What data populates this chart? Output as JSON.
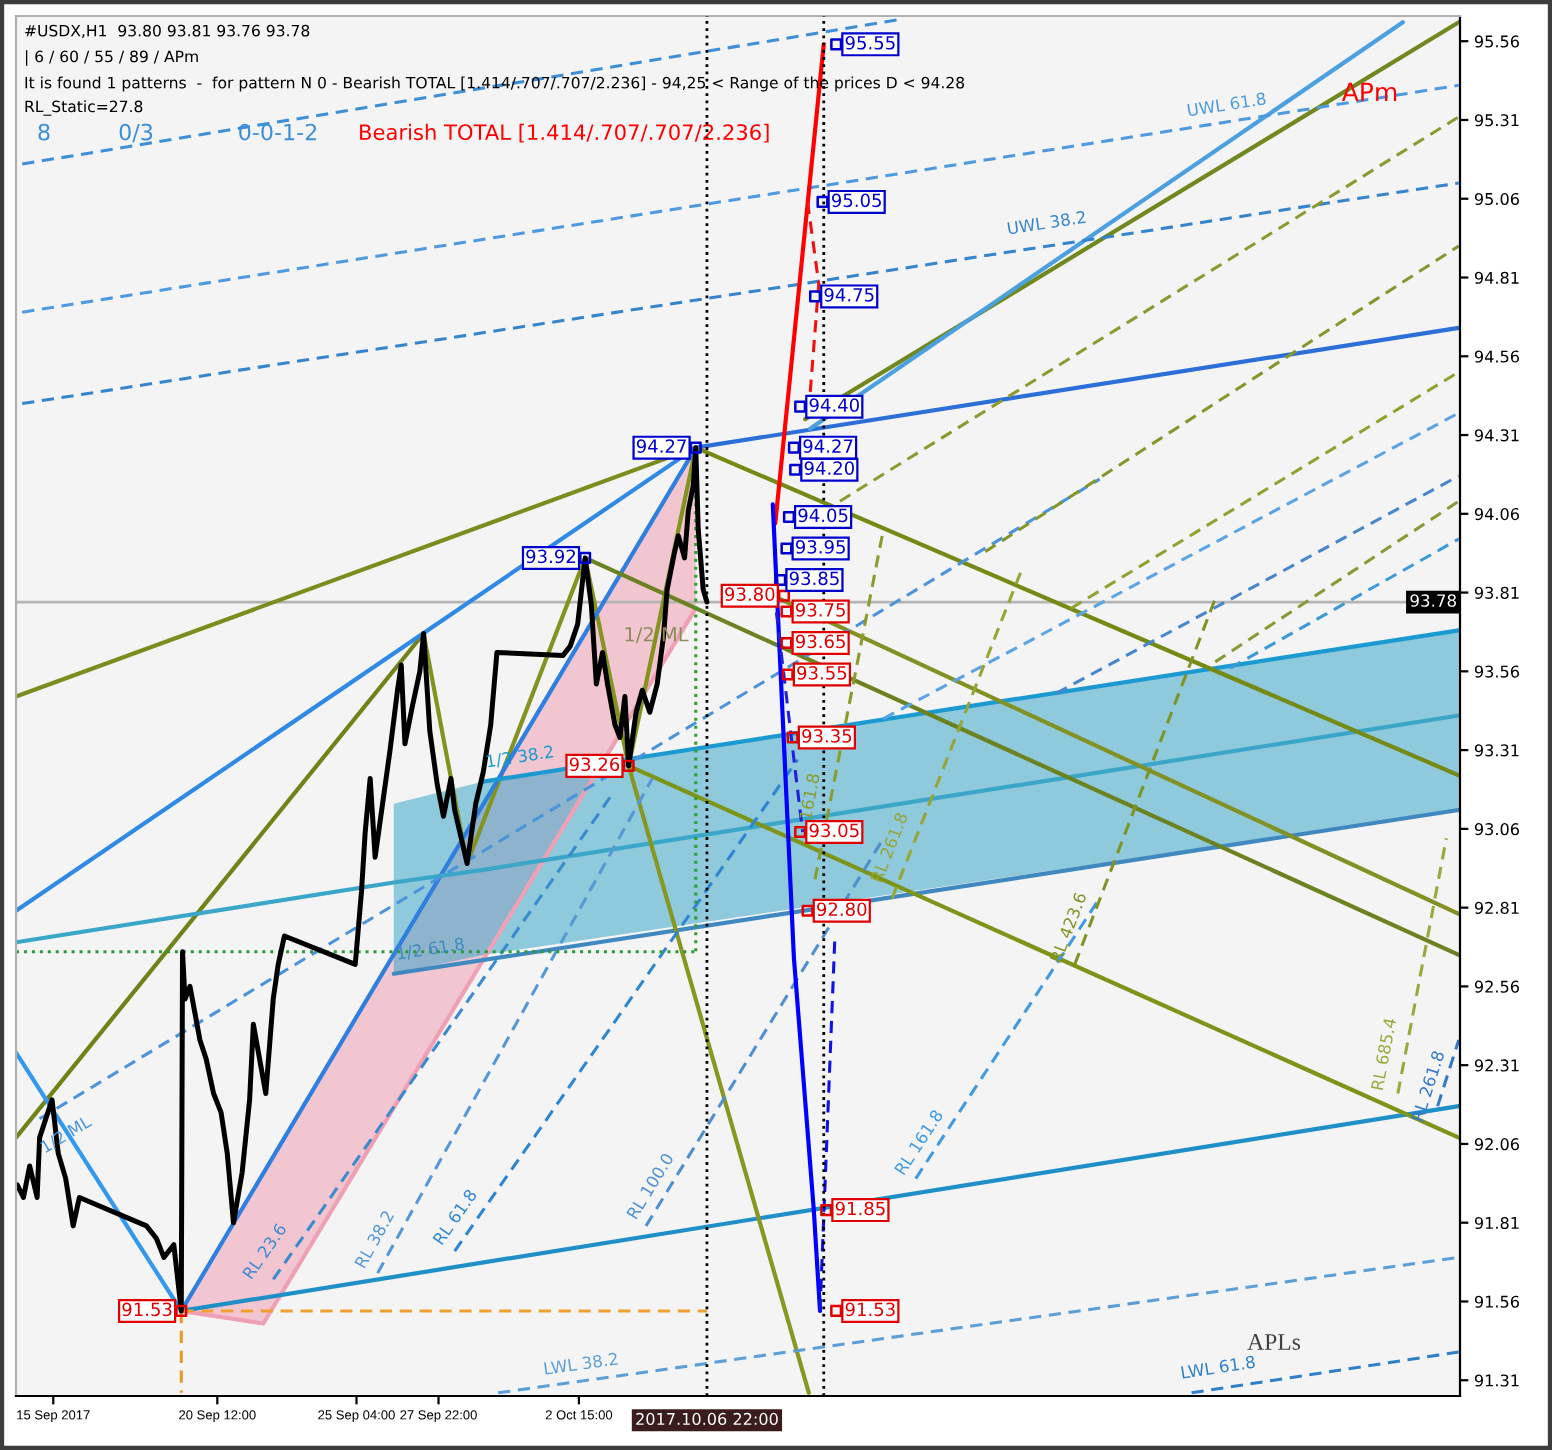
{
  "chart_data": {
    "type": "line",
    "title": "#USDX,H1  93.80 93.81 93.76 93.78",
    "subtitle": "| 6 / 60 / 55 / 89 / APm",
    "annotations": [
      "It is found 1 patterns  -  for pattern N 0 - Bearish TOTAL [1.414/.707/.707/2.236] - 94,25 < Range of the prices D < 94.28",
      "RL_Static=27.8",
      "8",
      "0/3",
      "0-0-1-2",
      "Bearish TOTAL [1.414/.707/.707/2.236]",
      "APm",
      "APLs",
      "1/2 ML"
    ],
    "xlim": [
      "2017-09-13T18:00",
      "2017-11-01T04:00"
    ],
    "ylim": [
      91.26,
      95.64
    ],
    "xticks": [
      {
        "value": "2017-09-15",
        "label": "15 Sep 2017"
      },
      {
        "value": "2017-09-20T12:00",
        "label": "20 Sep 12:00"
      },
      {
        "value": "2017-09-25T04:00",
        "label": "25 Sep 04:00"
      },
      {
        "value": "2017-09-27T22:00",
        "label": "27 Sep 22:00"
      },
      {
        "value": "2017-10-02T15:00",
        "label": "2 Oct 15:00"
      }
    ],
    "yticks": [
      95.56,
      95.31,
      95.06,
      94.81,
      94.56,
      94.31,
      94.06,
      93.81,
      93.56,
      93.31,
      93.06,
      92.81,
      92.56,
      92.31,
      92.06,
      91.81,
      91.56,
      91.31
    ],
    "ref_lines": [
      {
        "axis": "x",
        "value": "2017-10-06T22:00",
        "label": "2017.10.06 22:00",
        "color": "#000000",
        "line_style": "dotted"
      },
      {
        "axis": "x",
        "value": "2017-10-10T20:00",
        "color": "#000000",
        "line_style": "dotted"
      },
      {
        "axis": "y",
        "value": 93.78,
        "label": "93.78",
        "color": "#b4b4b4"
      }
    ],
    "series": [
      {
        "color": "#f0a0b4",
        "x": [
          "2017-09-19T07:00",
          "2017-09-22T01:00",
          "2017-10-06T13:00"
        ],
        "values": [
          91.53,
          91.49,
          93.76
        ],
        "lower": [
          91.53,
          91.49,
          93.76
        ],
        "upper": [
          91.53,
          91.97,
          94.27
        ]
      },
      {
        "color": "#7b8d1d",
        "x": [
          "2017-09-13T18:00",
          "2017-10-06T13:00"
        ],
        "values": [
          93.48,
          94.27
        ]
      },
      {
        "color": "#6f8418",
        "x": [
          "2017-09-13T18:00",
          "2017-09-27T10:00"
        ],
        "values": [
          92.08,
          93.68
        ]
      },
      {
        "color": "#84931f",
        "x": [
          "2017-09-27T10:00",
          "2017-09-28T21:00",
          "2017-10-02T20:00",
          "2017-10-04T07:00",
          "2017-10-06T13:00"
        ],
        "values": [
          93.68,
          92.95,
          93.92,
          93.26,
          94.27
        ]
      },
      {
        "color": "#2e8ae6",
        "x": [
          "2017-09-13T18:00",
          "2017-10-06T13:00"
        ],
        "values": [
          92.8,
          94.27
        ]
      },
      {
        "color": "#2f7fe0",
        "x": [
          "2017-09-19T07:00",
          "2017-10-06T13:00"
        ],
        "values": [
          91.53,
          94.27
        ]
      },
      {
        "color": "#3399ee",
        "x": [
          "2017-09-13T18:00",
          "2017-09-19T07:00"
        ],
        "values": [
          92.35,
          91.53
        ]
      },
      {
        "color": "#1f8fc8",
        "x": [
          "2017-09-19T07:00",
          "2017-11-01T03:00"
        ],
        "values": [
          91.53,
          92.18
        ]
      },
      {
        "color": "#3aa6c8",
        "x": [
          "2017-09-13T18:00",
          "2017-09-26T10:00",
          "2017-09-29T10:00",
          "2017-11-01T03:00"
        ],
        "values": [
          92.7,
          92.89,
          92.93,
          93.42
        ],
        "lower": [
          null,
          92.6,
          92.66,
          93.12
        ],
        "upper": [
          null,
          93.14,
          93.21,
          93.69
        ]
      },
      {
        "name": "1/2 38.2",
        "color": "#1a9ad0",
        "x": [
          "2017-09-29T10:00",
          "2017-11-01T03:00"
        ],
        "values": [
          93.21,
          93.69
        ]
      },
      {
        "name": "1/2 61.8",
        "color": "#3f88c0",
        "x": [
          "2017-09-26T10:00",
          "2017-11-01T03:00"
        ],
        "values": [
          92.6,
          93.12
        ]
      },
      {
        "color": "#2c6fd8",
        "x": [
          "2017-10-06T13:00",
          "2017-11-01T03:00"
        ],
        "values": [
          94.27,
          94.65
        ]
      },
      {
        "color": "#748a14",
        "x": [
          "2017-10-06T13:00",
          "2017-11-01T03:00"
        ],
        "values": [
          94.27,
          93.23
        ]
      },
      {
        "color": "#829024",
        "x": [
          "2017-10-09T03:00",
          "2017-11-01T03:00"
        ],
        "values": [
          93.8,
          92.79
        ]
      },
      {
        "color": "#6c8220",
        "x": [
          "2017-10-02T20:00",
          "2017-11-01T03:00"
        ],
        "values": [
          93.92,
          92.66
        ]
      },
      {
        "color": "#7e9418",
        "x": [
          "2017-10-04T07:00",
          "2017-11-01T03:00"
        ],
        "values": [
          93.26,
          92.08
        ]
      },
      {
        "color": "#889622",
        "x": [
          "2017-10-04T07:00",
          "2017-10-10T08:00"
        ],
        "values": [
          93.26,
          91.27
        ]
      },
      {
        "color": "#70881e",
        "x": [
          "2017-10-10T05:00",
          "2017-11-01T03:00"
        ],
        "values": [
          94.36,
          95.62
        ]
      },
      {
        "color": "#4aa0e0",
        "x": [
          "2017-10-10T09:00",
          "2017-10-30T06:00"
        ],
        "values": [
          94.33,
          95.62
        ]
      },
      {
        "color": "#3d8fd6",
        "line_style": "dashed",
        "x": [
          "2017-09-13T23:00",
          "2017-10-13T11:00"
        ],
        "values": [
          95.17,
          95.63
        ]
      },
      {
        "name": "UWL 61.8",
        "color": "#4d9ae0",
        "line_style": "dashed",
        "x": [
          "2017-09-13T23:00",
          "2017-11-01T03:00"
        ],
        "values": [
          94.7,
          95.42
        ]
      },
      {
        "name": "UWL 38.2",
        "color": "#3585cc",
        "line_style": "dashed",
        "x": [
          "2017-09-13T23:00",
          "2017-11-01T03:00"
        ],
        "values": [
          94.41,
          95.11
        ]
      },
      {
        "name": "LWL 38.2",
        "color": "#5a9fd8",
        "line_style": "dashed",
        "x": [
          "2017-09-29T22:00",
          "2017-11-01T03:00"
        ],
        "values": [
          91.27,
          91.7
        ]
      },
      {
        "name": "LWL 61.8",
        "color": "#2f80c8",
        "line_style": "dashed",
        "x": [
          "2017-10-23T04:00",
          "2017-11-01T03:00"
        ],
        "values": [
          91.27,
          91.4
        ]
      },
      {
        "name": "1/2 ML",
        "color": "#4a94dc",
        "line_style": "dashed",
        "x": [
          "2017-09-14T13:00",
          "2017-10-20T02:00"
        ],
        "values": [
          92.14,
          94.17
        ]
      },
      {
        "name": "RL 23.6",
        "color": "#3a8ad0",
        "line_style": "dashed",
        "x": [
          "2017-09-22T09:00",
          "2017-10-03T16:00"
        ],
        "values": [
          91.63,
          93.16
        ]
      },
      {
        "name": "RL 38.2",
        "color": "#5598d8",
        "line_style": "dashed",
        "x": [
          "2017-09-25T21:00",
          "2017-10-05T02:00"
        ],
        "values": [
          91.65,
          93.22
        ]
      },
      {
        "name": "RL 61.8",
        "color": "#2e86d2",
        "line_style": "dashed",
        "x": [
          "2017-09-28T11:00",
          "2017-10-09T23:00"
        ],
        "values": [
          91.72,
          93.28
        ]
      },
      {
        "name": "RL 100.0",
        "color": "#4e8fd0",
        "line_style": "dashed",
        "x": [
          "2017-10-04T21:00",
          "2017-10-12T20:00"
        ],
        "values": [
          91.8,
          93.03
        ]
      },
      {
        "name": "RL 161.8",
        "color": "#3f9ae2",
        "line_style": "dashed",
        "x": [
          "2017-10-13T22:00",
          "2017-10-20T02:00"
        ],
        "values": [
          91.95,
          92.84
        ]
      },
      {
        "name": "RL 261.8",
        "color": "#3478c8",
        "line_style": "dashed",
        "x": [
          "2017-10-31T10:00",
          "2017-11-01T03:00"
        ],
        "values": [
          92.18,
          92.39
        ]
      },
      {
        "color": "#5ba4e4",
        "line_style": "dashed",
        "x": [
          "2017-10-12T20:00",
          "2017-11-01T03:00"
        ],
        "values": [
          93.41,
          94.38
        ]
      },
      {
        "color": "#4687cc",
        "line_style": "dashed",
        "x": [
          "2017-10-18T15:00",
          "2017-11-01T03:00"
        ],
        "values": [
          93.49,
          94.18
        ]
      },
      {
        "color": "#3c9ad8",
        "line_style": "dashed",
        "x": [
          "2017-10-24T11:00",
          "2017-11-01T03:00"
        ],
        "values": [
          93.57,
          93.98
        ]
      },
      {
        "name": "161.8",
        "color": "#8a9c2c",
        "line_style": "dashed",
        "x": [
          "2017-10-10T13:00",
          "2017-10-12T20:00"
        ],
        "values": [
          92.9,
          94.01
        ]
      },
      {
        "name": "RL 261.8",
        "color": "#96a534",
        "line_style": "dashed",
        "x": [
          "2017-10-13T03:00",
          "2017-10-17T11:00"
        ],
        "values": [
          92.84,
          93.88
        ]
      },
      {
        "name": "RL 423.6",
        "color": "#7f9424",
        "line_style": "dashed",
        "x": [
          "2017-10-19T06:00",
          "2017-10-23T23:00"
        ],
        "values": [
          92.63,
          93.79
        ]
      },
      {
        "name": "RL 685.4",
        "color": "#9aa83c",
        "line_style": "dashed",
        "x": [
          "2017-10-30T02:00",
          "2017-10-31T17:00"
        ],
        "values": [
          92.22,
          93.03
        ]
      },
      {
        "color": "#8d9a30",
        "line_style": "dashed",
        "x": [
          "2017-10-11T09:00",
          "2017-11-01T03:00"
        ],
        "values": [
          94.1,
          95.32
        ]
      },
      {
        "color": "#84972a",
        "line_style": "dashed",
        "x": [
          "2017-10-16T06:00",
          "2017-11-01T03:00"
        ],
        "values": [
          93.94,
          94.91
        ]
      },
      {
        "color": "#92a030",
        "line_style": "dashed",
        "x": [
          "2017-10-19T03:00",
          "2017-11-01T03:00"
        ],
        "values": [
          93.76,
          94.51
        ]
      },
      {
        "color": "#889a36",
        "line_style": "dashed",
        "x": [
          "2017-10-23T23:00",
          "2017-11-01T03:00"
        ],
        "values": [
          93.59,
          94.1
        ]
      },
      {
        "color": "#2e9e2e",
        "line_style": "dotted",
        "x": [
          "2017-10-06T13:00",
          "2017-10-06T13:00"
        ],
        "values": [
          94.27,
          92.67
        ]
      },
      {
        "color": "#2a9a3a",
        "line_style": "dotted",
        "x": [
          "2017-09-13T18:00",
          "2017-10-06T13:00"
        ],
        "values": [
          92.67,
          92.67
        ]
      },
      {
        "color": "#f0a030",
        "line_style": "dashed",
        "x": [
          "2017-09-19T07:00",
          "2017-10-06T22:00"
        ],
        "values": [
          91.53,
          91.53
        ]
      },
      {
        "color": "#e89828",
        "line_style": "dashed",
        "x": [
          "2017-09-19T07:00",
          "2017-09-19T07:00"
        ],
        "values": [
          91.53,
          91.27
        ]
      },
      {
        "color": "#000000",
        "x": [
          "2017-09-13T19:00",
          "2017-09-14T00:00",
          "2017-09-14T05:00",
          "2017-09-14T11:00",
          "2017-09-14T13:00",
          "2017-09-14T23:00",
          "2017-09-15T04:00",
          "2017-09-15T10:00",
          "2017-09-15T16:00",
          "2017-09-15T21:00",
          "2017-09-18T03:00",
          "2017-09-18T11:00",
          "2017-09-18T17:00",
          "2017-09-19T01:00",
          "2017-09-19T07:00",
          "2017-09-19T08:00",
          "2017-09-19T10:00",
          "2017-09-19T14:00",
          "2017-09-19T22:00",
          "2017-09-20T03:00",
          "2017-09-20T09:00",
          "2017-09-20T15:00",
          "2017-09-20T20:00",
          "2017-09-21T01:00",
          "2017-09-21T08:00",
          "2017-09-21T14:00",
          "2017-09-21T17:00",
          "2017-09-22T03:00",
          "2017-09-22T09:00",
          "2017-09-22T13:00",
          "2017-09-22T18:00",
          "2017-09-25T03:00",
          "2017-09-25T08:00",
          "2017-09-25T11:00",
          "2017-09-25T15:00",
          "2017-09-25T19:00",
          "2017-09-26T01:00",
          "2017-09-26T07:00",
          "2017-09-26T13:00",
          "2017-09-26T16:00",
          "2017-09-26T19:00",
          "2017-09-27T01:00",
          "2017-09-27T07:00",
          "2017-09-27T10:00",
          "2017-09-27T15:00",
          "2017-09-27T21:00",
          "2017-09-28T02:00",
          "2017-09-28T08:00",
          "2017-09-28T11:00",
          "2017-09-28T21:00",
          "2017-09-29T04:00",
          "2017-09-29T10:00",
          "2017-09-29T16:00",
          "2017-09-29T21:00",
          "2017-10-02T02:00",
          "2017-10-02T08:00",
          "2017-10-02T14:00",
          "2017-10-02T20:00",
          "2017-10-03T01:00",
          "2017-10-03T05:00",
          "2017-10-03T10:00",
          "2017-10-03T14:00",
          "2017-10-03T20:00",
          "2017-10-04T00:00",
          "2017-10-04T04:00",
          "2017-10-04T07:00",
          "2017-10-04T13:00",
          "2017-10-04T18:00",
          "2017-10-05T00:00",
          "2017-10-05T06:00",
          "2017-10-05T11:00",
          "2017-10-05T14:00",
          "2017-10-05T20:00",
          "2017-10-05T23:00",
          "2017-10-06T04:00",
          "2017-10-06T07:00",
          "2017-10-06T11:00",
          "2017-10-06T13:00",
          "2017-10-06T15:00",
          "2017-10-06T19:00",
          "2017-10-06T22:00"
        ],
        "values": [
          91.93,
          91.89,
          91.99,
          91.89,
          92.08,
          92.2,
          92.03,
          91.95,
          91.8,
          91.89,
          91.8,
          91.76,
          91.7,
          91.74,
          91.53,
          92.67,
          92.52,
          92.56,
          92.39,
          92.33,
          92.22,
          92.16,
          92.03,
          91.81,
          91.97,
          92.2,
          92.44,
          92.22,
          92.52,
          92.63,
          92.72,
          92.63,
          92.86,
          93.05,
          93.22,
          92.97,
          93.14,
          93.31,
          93.5,
          93.58,
          93.33,
          93.45,
          93.56,
          93.68,
          93.37,
          93.2,
          93.1,
          93.22,
          93.12,
          92.95,
          93.14,
          93.24,
          93.39,
          93.62,
          93.61,
          93.64,
          93.71,
          93.92,
          93.77,
          93.52,
          93.62,
          93.52,
          93.39,
          93.35,
          93.48,
          93.26,
          93.43,
          93.5,
          93.43,
          93.52,
          93.67,
          93.82,
          93.94,
          93.99,
          93.92,
          94.07,
          94.15,
          94.27,
          94.01,
          93.82,
          93.78
        ]
      },
      {
        "color": "#ff0000",
        "x": [
          "2017-10-09T05:00",
          "2017-10-10T20:00"
        ],
        "values": [
          94.03,
          95.55
        ]
      },
      {
        "color": "#f01010",
        "line_style": "dashed",
        "x": [
          "2017-10-10T07:00",
          "2017-10-10T16:00",
          "2017-10-10T09:00"
        ],
        "values": [
          95.05,
          94.79,
          94.44
        ]
      },
      {
        "color": "#0000ff",
        "x": [
          "2017-10-09T03:00",
          "2017-10-09T20:00",
          "2017-10-10T12:00",
          "2017-10-10T17:00"
        ],
        "values": [
          94.09,
          92.65,
          91.85,
          91.53
        ]
      },
      {
        "color": "#1010e8",
        "line_style": "dashed",
        "x": [
          "2017-10-10T17:00",
          "2017-10-11T05:00"
        ],
        "values": [
          91.53,
          92.72
        ]
      },
      {
        "color": "#2020d8",
        "line_style": "dashed",
        "x": [
          "2017-10-09T04:00",
          "2017-10-10T03:00"
        ],
        "values": [
          93.81,
          93.05
        ]
      },
      {
        "type": "scatter",
        "color": "#0000cd",
        "marker": "square",
        "x": [
          "2017-10-06T13:00",
          "2017-10-02T20:00",
          "2017-10-11T06:00",
          "2017-10-10T19:00",
          "2017-10-10T13:00",
          "2017-10-10T01:00",
          "2017-10-09T20:00",
          "2017-10-09T21:00",
          "2017-10-09T16:00",
          "2017-10-09T14:00",
          "2017-10-09T09:00"
        ],
        "values": [
          94.27,
          93.92,
          95.55,
          95.05,
          94.75,
          94.4,
          94.27,
          94.2,
          94.05,
          93.95,
          93.85
        ],
        "value_labels": [
          "94.27",
          "93.92",
          "95.55",
          "95.05",
          "94.75",
          "94.40",
          "94.27",
          "94.20",
          "94.05",
          "93.95",
          "93.85"
        ]
      },
      {
        "type": "scatter",
        "color": "#e00000",
        "marker": "square",
        "x": [
          "2017-10-04T07:00",
          "2017-09-19T07:00",
          "2017-10-09T12:00",
          "2017-10-09T14:00",
          "2017-10-09T14:00",
          "2017-10-09T15:00",
          "2017-10-09T19:00",
          "2017-10-10T01:00",
          "2017-10-10T07:00",
          "2017-10-10T22:00",
          "2017-10-11T06:00"
        ],
        "values": [
          93.26,
          91.53,
          93.8,
          93.75,
          93.65,
          93.55,
          93.35,
          93.05,
          92.8,
          91.85,
          91.53
        ],
        "value_labels": [
          "93.26",
          "91.53",
          "93.80",
          "93.75",
          "93.65",
          "93.55",
          "93.35",
          "93.05",
          "92.80",
          "91.85",
          "91.53"
        ]
      }
    ]
  }
}
